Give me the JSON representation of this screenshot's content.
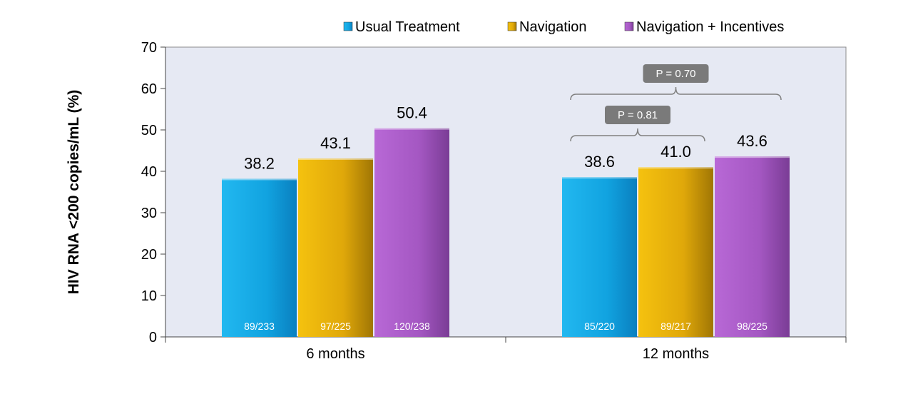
{
  "chart_data": {
    "type": "bar",
    "ylabel": "HIV RNA <200 copies/mL (%)",
    "xlabel": "",
    "ylim": [
      0,
      70
    ],
    "yticks": [
      0,
      10,
      20,
      30,
      40,
      50,
      60,
      70
    ],
    "grid": false,
    "legend_position": "top-right",
    "categories": [
      "6 months",
      "12 months"
    ],
    "series": [
      {
        "name": "Usual Treatment",
        "color": "#1ba9e6",
        "values": [
          38.2,
          38.6
        ],
        "value_labels": [
          "38.2",
          "38.6"
        ],
        "counts": [
          "89/233",
          "85/220"
        ]
      },
      {
        "name": "Navigation",
        "color": "#e6ae0c",
        "values": [
          43.1,
          41.0
        ],
        "value_labels": [
          "43.1",
          "41.0"
        ],
        "counts": [
          "97/225",
          "89/217"
        ]
      },
      {
        "name": "Navigation + Incentives",
        "color": "#a657c4",
        "values": [
          50.4,
          43.6
        ],
        "value_labels": [
          "50.4",
          "43.6"
        ],
        "counts": [
          "120/238",
          "98/225"
        ]
      }
    ],
    "annotations": [
      {
        "text": "P = 0.81",
        "category": 1,
        "from_series": 0,
        "to_series": 1,
        "y": 50
      },
      {
        "text": "P = 0.70",
        "category": 1,
        "from_series": 0,
        "to_series": 2,
        "y": 60
      }
    ]
  }
}
